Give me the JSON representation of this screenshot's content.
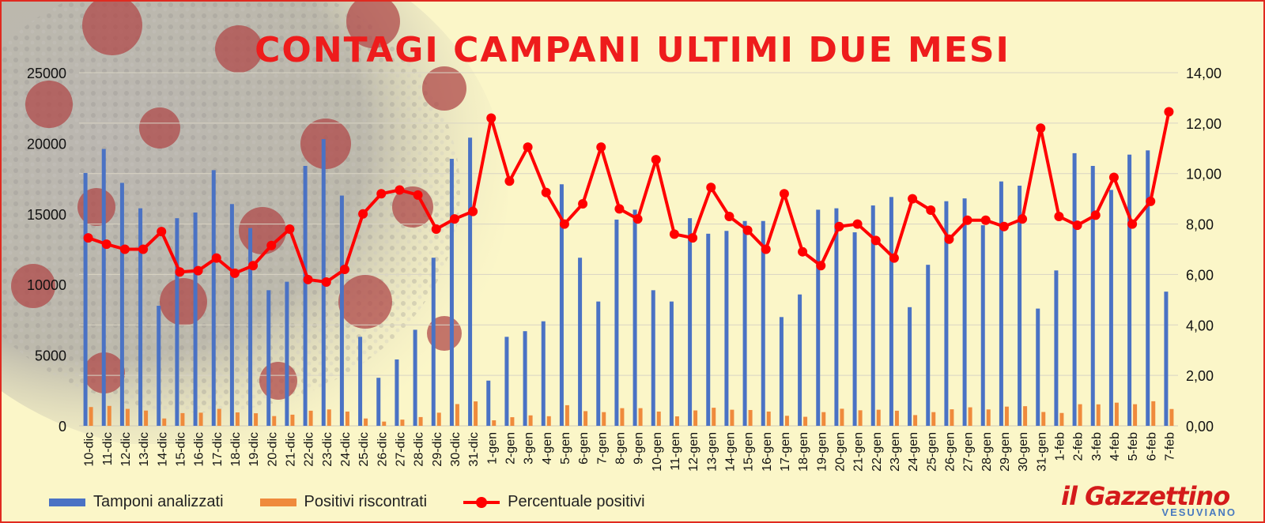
{
  "chart_data": {
    "type": "bar+line",
    "title": "CONTAGI CAMPANI ULTIMI DUE MESI",
    "categories": [
      "10-dic",
      "11-dic",
      "12-dic",
      "13-dic",
      "14-dic",
      "15-dic",
      "16-dic",
      "17-dic",
      "18-dic",
      "19-dic",
      "20-dic",
      "21-dic",
      "22-dic",
      "23-dic",
      "24-dic",
      "25-dic",
      "26-dic",
      "27-dic",
      "28-dic",
      "29-dic",
      "30-dic",
      "31-dic",
      "1-gen",
      "2-gen",
      "3-gen",
      "4-gen",
      "5-gen",
      "6-gen",
      "7-gen",
      "8-gen",
      "9-gen",
      "10-gen",
      "11-gen",
      "12-gen",
      "13-gen",
      "14-gen",
      "15-gen",
      "16-gen",
      "17-gen",
      "18-gen",
      "19-gen",
      "20-gen",
      "21-gen",
      "22-gen",
      "23-gen",
      "24-gen",
      "25-gen",
      "26-gen",
      "27-gen",
      "28-gen",
      "29-gen",
      "30-gen",
      "31-gen",
      "1-feb",
      "2-feb",
      "3-feb",
      "4-feb",
      "5-feb",
      "6-feb",
      "7-feb"
    ],
    "series": [
      {
        "name": "Tamponi analizzati",
        "type": "bar",
        "axis": "left",
        "color": "#4a72c4",
        "values": [
          17900,
          19600,
          17200,
          15400,
          8500,
          14700,
          15100,
          18100,
          15700,
          14000,
          9600,
          10200,
          18400,
          20300,
          16300,
          6300,
          3400,
          4700,
          6800,
          11900,
          18900,
          20400,
          3200,
          6300,
          6700,
          7400,
          17100,
          11900,
          8800,
          14600,
          15300,
          9600,
          8800,
          14700,
          13600,
          13800,
          14500,
          14500,
          7700,
          9300,
          15300,
          15400,
          13700,
          15600,
          16200,
          8400,
          11400,
          15900,
          16100,
          14200,
          17300,
          17000,
          8300,
          11000,
          19300,
          18400,
          16700,
          19200,
          19500,
          9500
        ]
      },
      {
        "name": "Positivi riscontrati",
        "type": "bar",
        "axis": "left",
        "color": "#ef8a3c",
        "values": [
          1330,
          1410,
          1200,
          1080,
          520,
          900,
          930,
          1200,
          950,
          890,
          690,
          790,
          1070,
          1160,
          1010,
          520,
          300,
          440,
          620,
          930,
          1540,
          1730,
          390,
          610,
          740,
          680,
          1460,
          1040,
          970,
          1250,
          1250,
          1010,
          670,
          1090,
          1280,
          1140,
          1120,
          1010,
          710,
          640,
          970,
          1210,
          1100,
          1140,
          1070,
          760,
          970,
          1170,
          1310,
          1160,
          1360,
          1390,
          980,
          910,
          1530,
          1520,
          1640,
          1530,
          1740,
          1190
        ]
      },
      {
        "name": "Percentuale positivi",
        "type": "line",
        "axis": "right",
        "color": "#ff0000",
        "values": [
          7.45,
          7.2,
          7.0,
          7.0,
          7.7,
          6.1,
          6.15,
          6.65,
          6.05,
          6.35,
          7.15,
          7.8,
          5.8,
          5.7,
          6.2,
          8.4,
          9.2,
          9.35,
          9.15,
          7.8,
          8.2,
          8.5,
          12.2,
          9.7,
          11.05,
          9.25,
          8.0,
          8.8,
          11.05,
          8.6,
          8.2,
          10.55,
          7.6,
          7.45,
          9.45,
          8.3,
          7.75,
          7.0,
          9.2,
          6.9,
          6.35,
          7.9,
          8.0,
          7.35,
          6.65,
          9.0,
          8.55,
          7.4,
          8.15,
          8.15,
          7.9,
          8.2,
          11.8,
          8.3,
          7.95,
          8.35,
          9.85,
          8.0,
          8.9,
          12.45
        ]
      }
    ],
    "y_left": {
      "min": 0,
      "max": 25000,
      "ticks": [
        "0",
        "5000",
        "10000",
        "15000",
        "20000",
        "25000"
      ]
    },
    "y_right": {
      "min": 0,
      "max": 14,
      "ticks": [
        "0,00",
        "2,00",
        "4,00",
        "6,00",
        "8,00",
        "10,00",
        "12,00",
        "14,00"
      ]
    },
    "grid": true,
    "legend_position": "bottom"
  },
  "legend": {
    "tamponi": "Tamponi analizzati",
    "positivi": "Positivi riscontrati",
    "percentuale": "Percentuale positivi"
  },
  "brand": {
    "name": "il Gazzettino",
    "sub": "VESUVIANO"
  },
  "colors": {
    "background": "#fbf6c8",
    "border": "#e02a20",
    "title": "#ee1c1c"
  }
}
